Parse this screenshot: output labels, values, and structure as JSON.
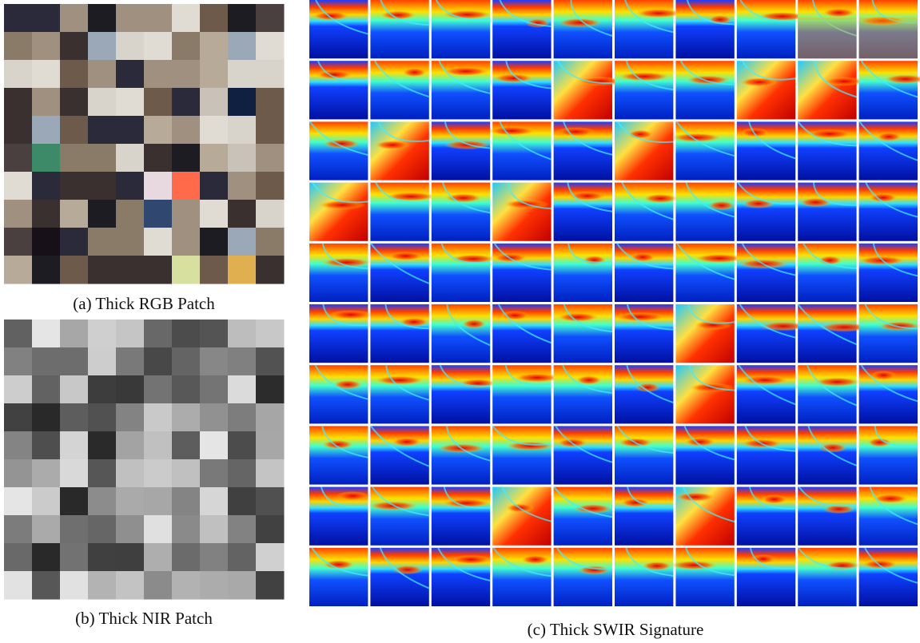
{
  "figure": {
    "panels": [
      {
        "caption": "(a) Thick RGB Patch"
      },
      {
        "caption": "(b) Thick NIR Patch"
      },
      {
        "caption": "(c) Thick SWIR Signature"
      }
    ]
  }
}
